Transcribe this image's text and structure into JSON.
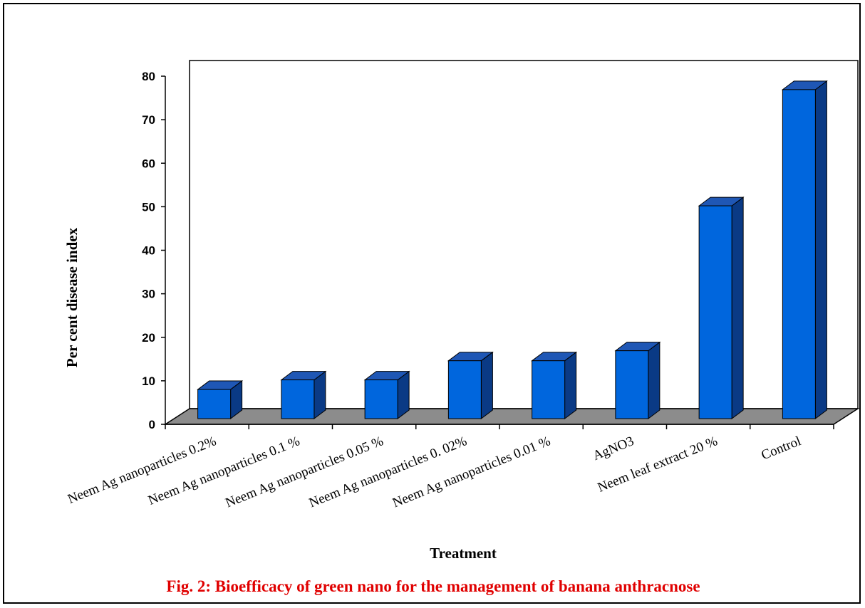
{
  "chart_data": {
    "type": "bar",
    "title": "",
    "caption": "Fig. 2: Bioefficacy of green nano for the management of banana anthracnose",
    "xlabel": "Treatment",
    "ylabel": "Per cent disease index",
    "ylim": [
      0,
      80
    ],
    "yticks": [
      "0",
      "10",
      "20",
      "30",
      "40",
      "50",
      "60",
      "70",
      "80"
    ],
    "categories": [
      "Neem Ag nanoparticles 0.2%",
      "Neem Ag nanoparticles 0.1 %",
      "Neem Ag nanoparticles 0.05 %",
      "Neem Ag nanoparticles 0. 02%",
      "Neem Ag nanoparticles 0.01 %",
      "AgNO3",
      "Neem leaf extract 20 %",
      "Control"
    ],
    "values": [
      6.7,
      8.9,
      8.9,
      13.3,
      13.3,
      15.6,
      48.9,
      75.6
    ],
    "grid": false,
    "legend": "none",
    "colors": {
      "bar_front": "#0066dd",
      "bar_top": "#1f57b5",
      "bar_side": "#0a3a85",
      "floor": "#8c8c8c",
      "caption": "#e00000"
    }
  }
}
